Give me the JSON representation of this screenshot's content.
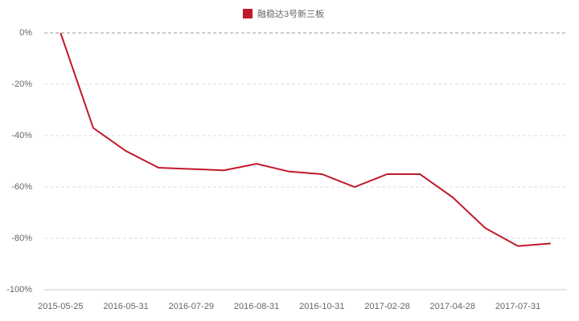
{
  "chart_data": {
    "type": "line",
    "categories": [
      "2015-05-25",
      null,
      "2016-05-31",
      null,
      "2016-07-29",
      null,
      "2016-08-31",
      null,
      "2016-10-31",
      null,
      "2017-02-28",
      null,
      "2017-04-28",
      null,
      "2017-07-31",
      null
    ],
    "series": [
      {
        "name": "融稳达3号新三板",
        "color": "#c0182b",
        "values": [
          0,
          -37,
          -46,
          -52.5,
          -53,
          -53.5,
          -51,
          -54,
          -55,
          -60,
          -55,
          -55,
          -64,
          -76,
          -83,
          -82
        ]
      }
    ],
    "ylim": [
      -100,
      0
    ],
    "yticks": [
      {
        "value": 0,
        "label": "0%"
      },
      {
        "value": -20,
        "label": "-20%"
      },
      {
        "value": -40,
        "label": "-40%"
      },
      {
        "value": -60,
        "label": "-60%"
      },
      {
        "value": -80,
        "label": "-80%"
      },
      {
        "value": -100,
        "label": "-100%"
      }
    ],
    "grid": true,
    "legend": "top"
  }
}
